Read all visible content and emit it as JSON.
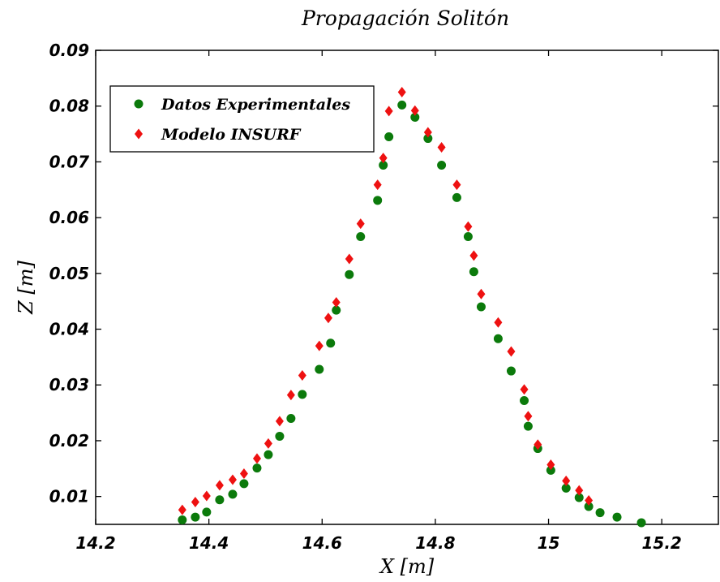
{
  "chart_data": {
    "type": "scatter",
    "title": "Propagación Solitón",
    "xlabel": "X [m]",
    "ylabel": "Z [m]",
    "xlim": [
      14.2,
      15.3
    ],
    "ylim": [
      0.005,
      0.09
    ],
    "xticks": [
      14.2,
      14.4,
      14.6,
      14.8,
      15,
      15.2
    ],
    "xtick_labels": [
      "14.2",
      "14.4",
      "14.6",
      "14.8",
      "15",
      "15.2"
    ],
    "yticks": [
      0.01,
      0.02,
      0.03,
      0.04,
      0.05,
      0.06,
      0.07,
      0.08,
      0.09
    ],
    "ytick_labels": [
      "0.01",
      "0.02",
      "0.03",
      "0.04",
      "0.05",
      "0.06",
      "0.07",
      "0.08",
      "0.09"
    ],
    "grid": false,
    "legend_position": "top-left",
    "series": [
      {
        "name": "Datos Experimentales",
        "marker": "circle",
        "color": "#0b7a0b",
        "x": [
          14.353,
          14.376,
          14.396,
          14.419,
          14.442,
          14.462,
          14.485,
          14.505,
          14.525,
          14.545,
          14.565,
          14.595,
          14.615,
          14.625,
          14.648,
          14.668,
          14.698,
          14.708,
          14.718,
          14.741,
          14.764,
          14.787,
          14.811,
          14.838,
          14.858,
          14.868,
          14.881,
          14.911,
          14.934,
          14.957,
          14.964,
          14.981,
          15.004,
          15.031,
          15.054,
          15.071,
          15.091,
          15.121,
          15.164
        ],
        "y": [
          0.0058,
          0.0063,
          0.0072,
          0.0094,
          0.0104,
          0.0123,
          0.0151,
          0.0175,
          0.0208,
          0.024,
          0.0283,
          0.0328,
          0.0375,
          0.0434,
          0.0498,
          0.0566,
          0.0631,
          0.0694,
          0.0745,
          0.0802,
          0.078,
          0.0742,
          0.0694,
          0.0636,
          0.0566,
          0.0503,
          0.044,
          0.0383,
          0.0325,
          0.0272,
          0.0226,
          0.0186,
          0.0147,
          0.0115,
          0.0098,
          0.0082,
          0.0071,
          0.0063,
          0.0053
        ]
      },
      {
        "name": "Modelo INSURF",
        "marker": "diamond",
        "color": "#ee1111",
        "x": [
          14.353,
          14.376,
          14.396,
          14.419,
          14.442,
          14.462,
          14.485,
          14.505,
          14.525,
          14.545,
          14.565,
          14.595,
          14.611,
          14.625,
          14.648,
          14.668,
          14.698,
          14.708,
          14.718,
          14.741,
          14.764,
          14.787,
          14.811,
          14.838,
          14.858,
          14.868,
          14.881,
          14.911,
          14.934,
          14.957,
          14.964,
          14.981,
          15.004,
          15.031,
          15.054,
          15.071
        ],
        "y": [
          0.0076,
          0.009,
          0.0101,
          0.012,
          0.013,
          0.0141,
          0.0168,
          0.0195,
          0.0235,
          0.0282,
          0.0317,
          0.037,
          0.042,
          0.0448,
          0.0526,
          0.0589,
          0.0659,
          0.0707,
          0.0791,
          0.0825,
          0.0792,
          0.0753,
          0.0726,
          0.0659,
          0.0584,
          0.0532,
          0.0463,
          0.0412,
          0.036,
          0.0292,
          0.0244,
          0.0193,
          0.0157,
          0.0128,
          0.0111,
          0.0093
        ]
      }
    ]
  }
}
